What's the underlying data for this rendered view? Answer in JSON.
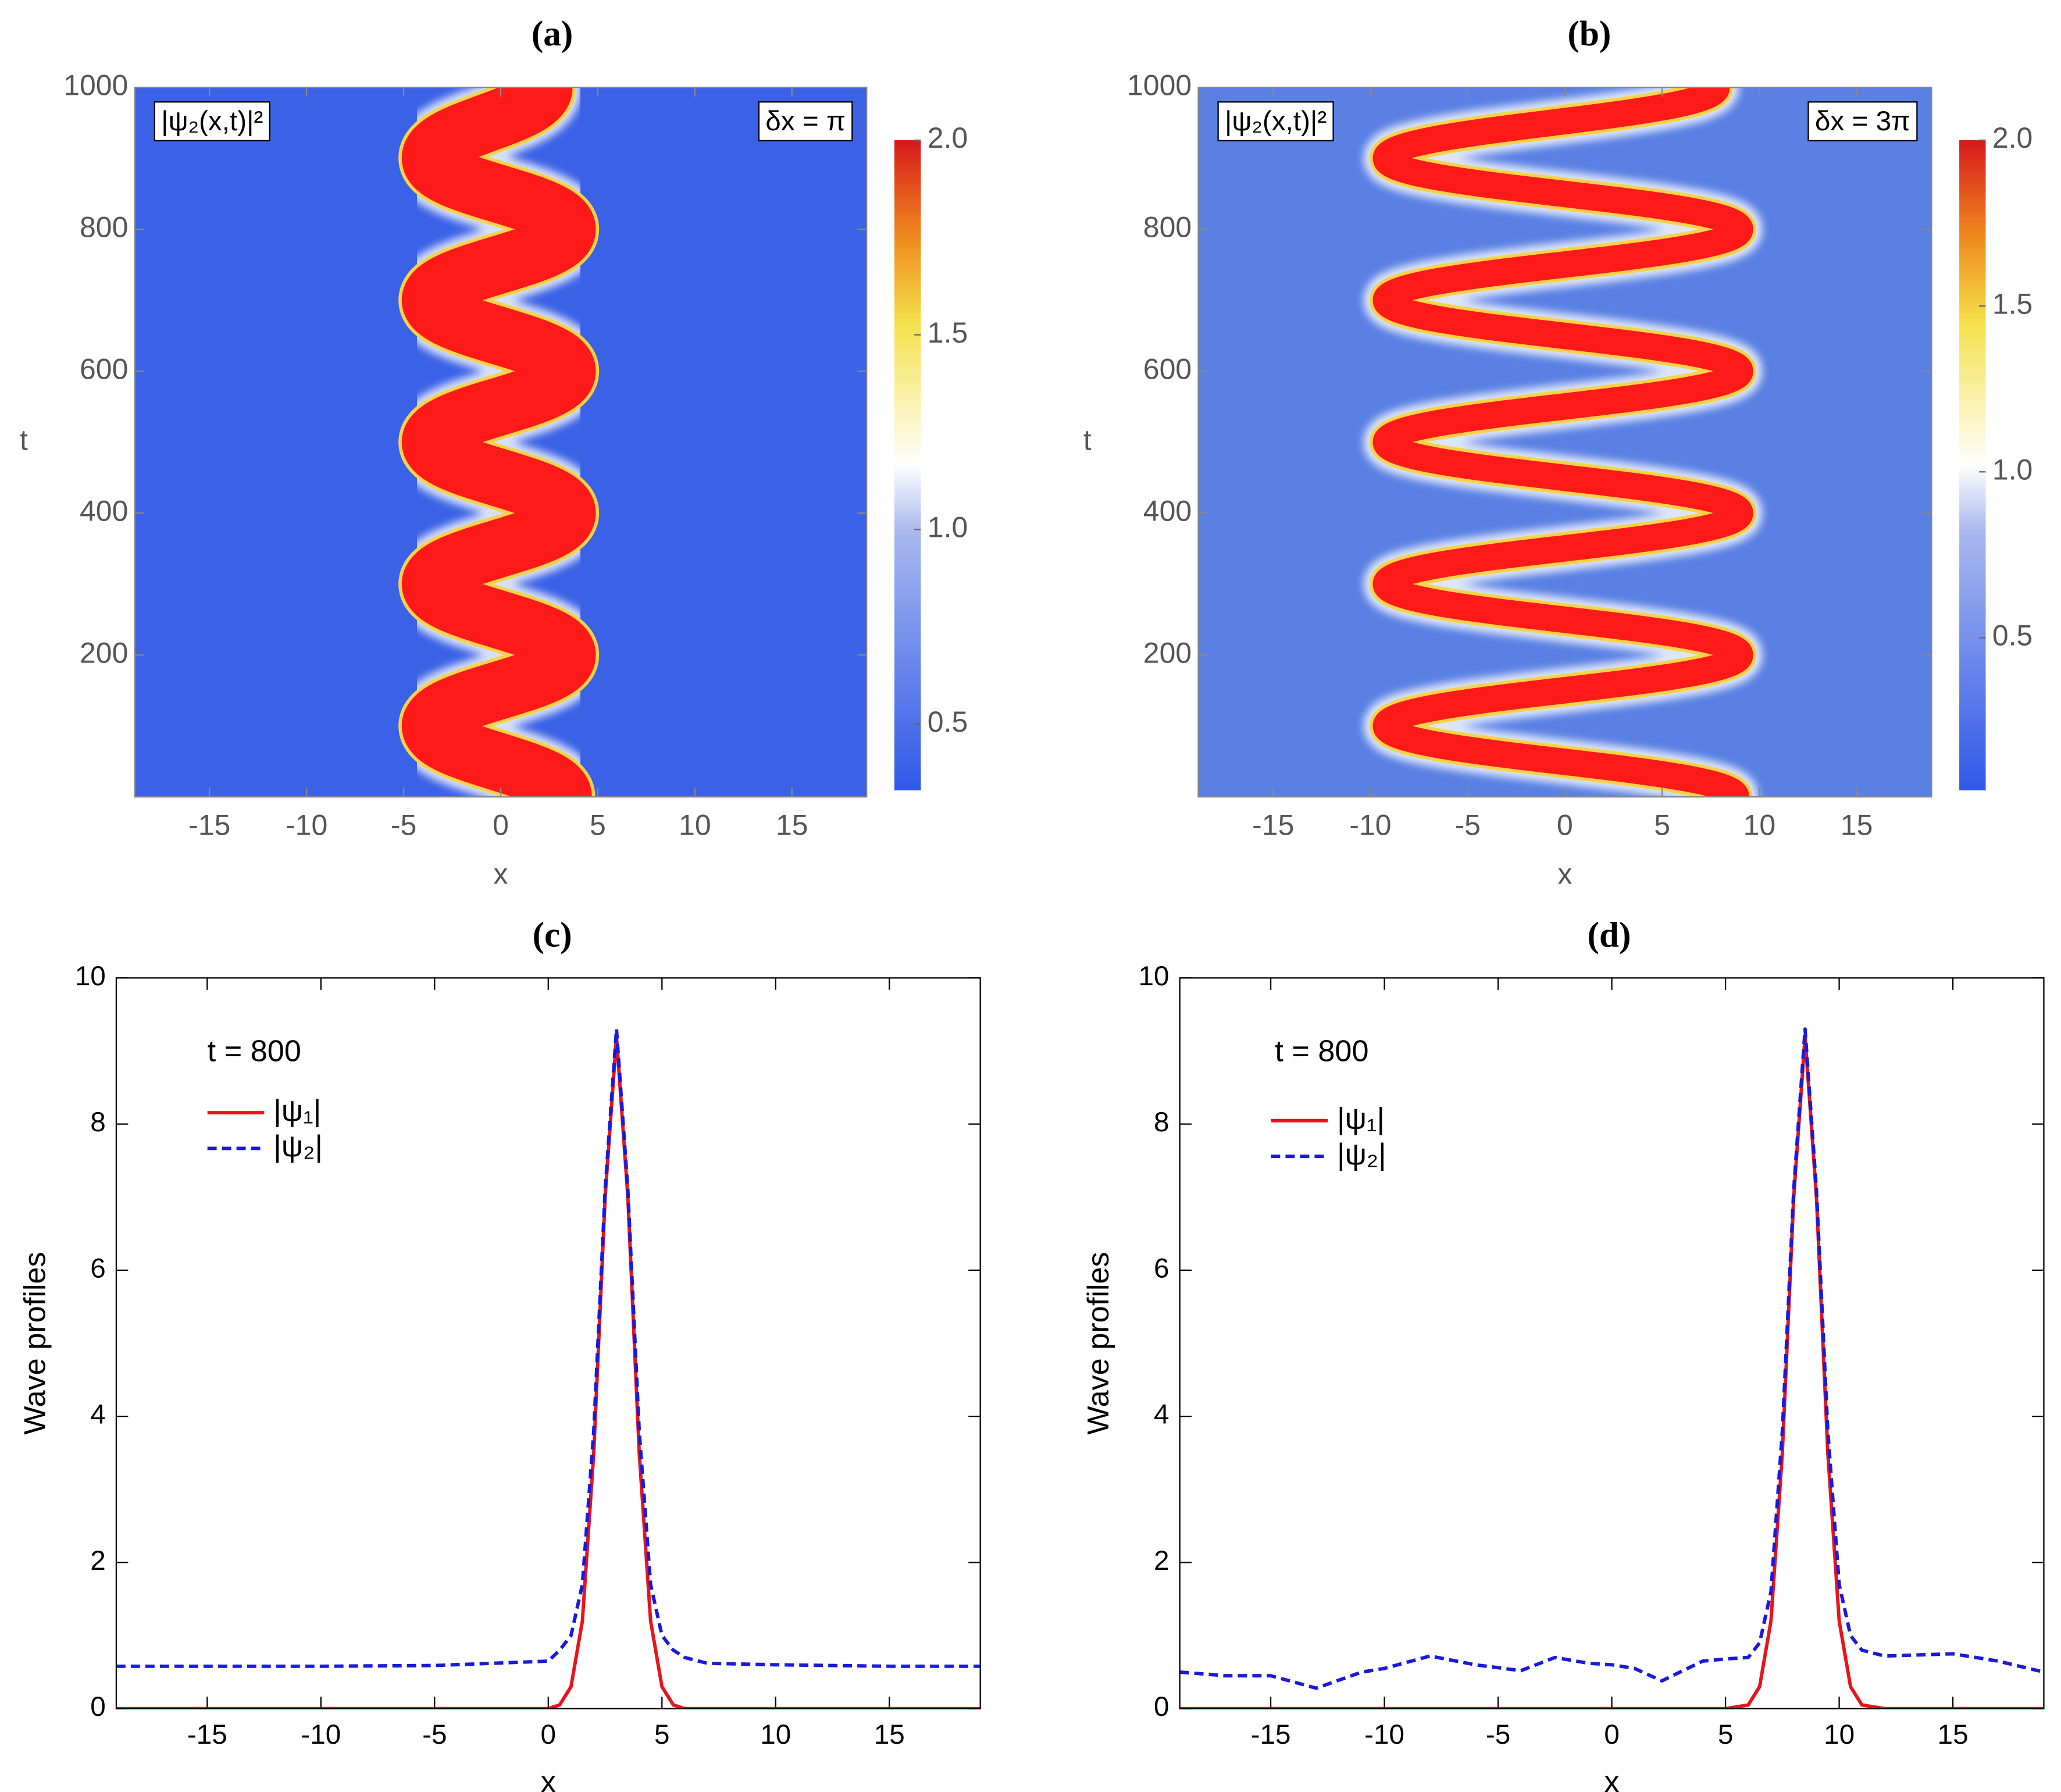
{
  "chart_data": [
    {
      "type": "density",
      "title": "(a)",
      "xlabel": "x",
      "ylabel": "t",
      "label": "|ψ₂(x,t)|²",
      "annotation": "δx = π",
      "xlim": [
        -18.85,
        18.85
      ],
      "xticks": [
        -15,
        -10,
        -5,
        0,
        5,
        10,
        15
      ],
      "ylim": [
        0,
        1000
      ],
      "yticks": [
        200,
        400,
        600,
        800,
        1000
      ],
      "background": "#3b62e6",
      "ridge_color": "#ff1a1a",
      "ridge_t": [
        0,
        100,
        200,
        300,
        400,
        500,
        600,
        700,
        800,
        900,
        1000
      ],
      "ridge_x": [
        3.2,
        -3.6,
        3.4,
        -3.6,
        3.4,
        -3.6,
        3.4,
        -3.6,
        3.4,
        -3.6,
        2.2
      ],
      "colorbar": {
        "lim": [
          0.33,
          2.0
        ],
        "ticks": [
          0.5,
          {
            "value": 1,
            "label": "1.0"
          },
          1.5,
          {
            "value": 2,
            "label": "2.0"
          }
        ]
      }
    },
    {
      "type": "density",
      "title": "(b)",
      "xlabel": "x",
      "ylabel": "t",
      "label": "|ψ₂(x,t)|²",
      "annotation": "δx = 3π",
      "xlim": [
        -18.85,
        18.85
      ],
      "xticks": [
        -15,
        -10,
        -5,
        0,
        5,
        10,
        15
      ],
      "ylim": [
        0,
        1000
      ],
      "yticks": [
        200,
        400,
        600,
        800,
        1000
      ],
      "background": "#5a80e4",
      "ridge_color": "#ff1a1a",
      "ridge_t": [
        0,
        100,
        200,
        300,
        400,
        500,
        600,
        700,
        800,
        900,
        1000
      ],
      "ridge_x": [
        8.8,
        -9.2,
        9,
        -9.2,
        9,
        -9.2,
        9,
        -9.2,
        9,
        -9.2,
        7.8
      ],
      "colorbar": {
        "lim": [
          0.04,
          2.0
        ],
        "ticks": [
          0.5,
          {
            "value": 1,
            "label": "1.0"
          },
          1.5,
          {
            "value": 2,
            "label": "2.0"
          }
        ]
      }
    },
    {
      "type": "line",
      "title": "(c)",
      "xlabel": "x",
      "ylabel": "Wave profiles",
      "annotation": "t = 800",
      "xlim": [
        -19,
        19
      ],
      "xticks": [
        -15,
        -10,
        -5,
        0,
        5,
        10,
        15
      ],
      "ylim": [
        0,
        10
      ],
      "yticks": [
        0,
        2,
        4,
        6,
        8,
        10
      ],
      "x": [
        -19,
        -15,
        -10,
        -5,
        0,
        0.5,
        1,
        1.5,
        2,
        2.5,
        3,
        3.5,
        4,
        4.5,
        5,
        5.5,
        6,
        7,
        10,
        15,
        19
      ],
      "series": [
        {
          "name": "|ψ₁|",
          "color": "#e8141c",
          "dashed": false,
          "values": [
            0,
            0,
            0,
            0,
            0,
            0.05,
            0.3,
            1.2,
            3.5,
            7,
            9.2,
            7,
            3.5,
            1.2,
            0.3,
            0.05,
            0,
            0,
            0,
            0,
            0
          ]
        },
        {
          "name": "|ψ₂|",
          "color": "#1a1adb",
          "dashed": true,
          "values": [
            0.58,
            0.58,
            0.58,
            0.59,
            0.65,
            0.8,
            1.0,
            1.7,
            3.8,
            7.1,
            9.3,
            7.1,
            3.8,
            1.7,
            1.0,
            0.8,
            0.7,
            0.62,
            0.6,
            0.58,
            0.58
          ]
        }
      ]
    },
    {
      "type": "line",
      "title": "(d)",
      "xlabel": "x",
      "ylabel": "Wave profiles",
      "annotation": "t = 800",
      "xlim": [
        -19,
        19
      ],
      "xticks": [
        -15,
        -10,
        -5,
        0,
        5,
        10,
        15
      ],
      "ylim": [
        0,
        10
      ],
      "yticks": [
        0,
        2,
        4,
        6,
        8,
        10
      ],
      "x": [
        -19,
        -17,
        -15,
        -13,
        -11,
        -10,
        -8,
        -6,
        -4,
        -2.5,
        -1,
        0,
        1,
        2.2,
        3,
        4,
        5,
        6,
        6.5,
        7,
        7.5,
        8,
        8.5,
        9,
        9.5,
        10,
        10.5,
        11,
        12,
        15,
        17,
        19
      ],
      "series": [
        {
          "name": "|ψ₁|",
          "color": "#e8141c",
          "dashed": false,
          "values": [
            0,
            0,
            0,
            0,
            0,
            0,
            0,
            0,
            0,
            0,
            0,
            0,
            0,
            0,
            0,
            0,
            0,
            0.05,
            0.3,
            1.2,
            3.5,
            7,
            9.2,
            7,
            3.5,
            1.2,
            0.3,
            0.05,
            0,
            0,
            0,
            0
          ]
        },
        {
          "name": "|ψ₂|",
          "color": "#1a1adb",
          "dashed": true,
          "values": [
            0.5,
            0.45,
            0.45,
            0.28,
            0.5,
            0.55,
            0.72,
            0.6,
            0.52,
            0.7,
            0.62,
            0.6,
            0.55,
            0.38,
            0.5,
            0.65,
            0.68,
            0.7,
            0.9,
            1.6,
            3.8,
            7.1,
            9.3,
            7.1,
            3.8,
            1.7,
            1.0,
            0.8,
            0.72,
            0.75,
            0.65,
            0.5
          ]
        }
      ]
    }
  ]
}
